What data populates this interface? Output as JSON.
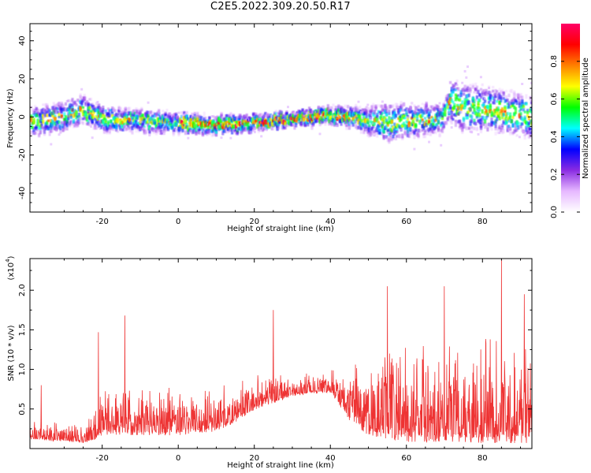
{
  "title": "C2E5.2022.309.20.50.R17",
  "chart_data": [
    {
      "type": "heatmap",
      "xlabel": "Height of straight line (km)",
      "ylabel": "Frequency (Hz)",
      "xlim": [
        -39,
        93
      ],
      "ylim": [
        -50,
        49
      ],
      "xticks": [
        -20,
        0,
        20,
        40,
        60,
        80
      ],
      "yticks": [
        -40,
        -20,
        0,
        20,
        40
      ],
      "ridge_centerline": {
        "x": [
          -39,
          -30,
          -26,
          -20,
          -10,
          0,
          10,
          20,
          30,
          40,
          48,
          55,
          60,
          65,
          69,
          71,
          75,
          80,
          85,
          90,
          93
        ],
        "frequency": [
          -3,
          0,
          4,
          -1,
          -2,
          -3,
          -4,
          -3,
          -1,
          1,
          -1,
          -3,
          -2,
          -1,
          -2,
          8,
          5,
          4,
          3,
          1,
          -2
        ]
      },
      "ridge_halfwidth_hz": {
        "x": [
          -39,
          -26,
          0,
          30,
          45,
          55,
          70,
          72,
          93
        ],
        "value": [
          6,
          6,
          4,
          3,
          4,
          8,
          6,
          10,
          9
        ]
      },
      "colorbar": {
        "label": "Normalized spectral amplitude",
        "range": [
          0.0,
          1.0
        ],
        "ticks": [
          "0.0",
          "0.2",
          "0.4",
          "0.6",
          "0.8"
        ],
        "colors": [
          "#ffffff",
          "#e6b8ff",
          "#8a2be2",
          "#0000ff",
          "#00ffff",
          "#00ff00",
          "#ffff00",
          "#ff8000",
          "#ff0000",
          "#ff0066"
        ]
      }
    },
    {
      "type": "line",
      "xlabel": "Height of straight line (km)",
      "ylabel": "SNR (10 * v/v)",
      "y_multiplier": "(x10",
      "y_multiplier_exp": "4",
      "xlim": [
        -39,
        93
      ],
      "ylim": [
        0,
        2.4
      ],
      "xticks": [
        -20,
        0,
        20,
        40,
        60,
        80
      ],
      "yticks": [
        "0.5",
        "1.0",
        "1.5",
        "2.0"
      ],
      "color": "#ee3333",
      "envelope": {
        "x": [
          -39,
          -25,
          -22,
          -20,
          -10,
          0,
          10,
          15,
          20,
          30,
          40,
          45,
          50,
          60,
          70,
          80,
          93
        ],
        "base": [
          0.15,
          0.1,
          0.15,
          0.25,
          0.25,
          0.25,
          0.3,
          0.4,
          0.55,
          0.7,
          0.75,
          0.45,
          0.3,
          0.25,
          0.25,
          0.25,
          0.25
        ],
        "spread": [
          0.25,
          0.2,
          0.35,
          0.5,
          0.55,
          0.55,
          0.55,
          0.45,
          0.4,
          0.25,
          0.25,
          0.6,
          0.9,
          1.1,
          1.1,
          1.2,
          1.2
        ]
      },
      "peaks": [
        {
          "x": -36,
          "y": 0.8
        },
        {
          "x": -21,
          "y": 1.47
        },
        {
          "x": -14,
          "y": 1.68
        },
        {
          "x": 25,
          "y": 1.75
        },
        {
          "x": 55,
          "y": 2.05
        },
        {
          "x": 70,
          "y": 2.05
        },
        {
          "x": 85,
          "y": 2.4
        },
        {
          "x": 91,
          "y": 1.95
        }
      ]
    }
  ]
}
